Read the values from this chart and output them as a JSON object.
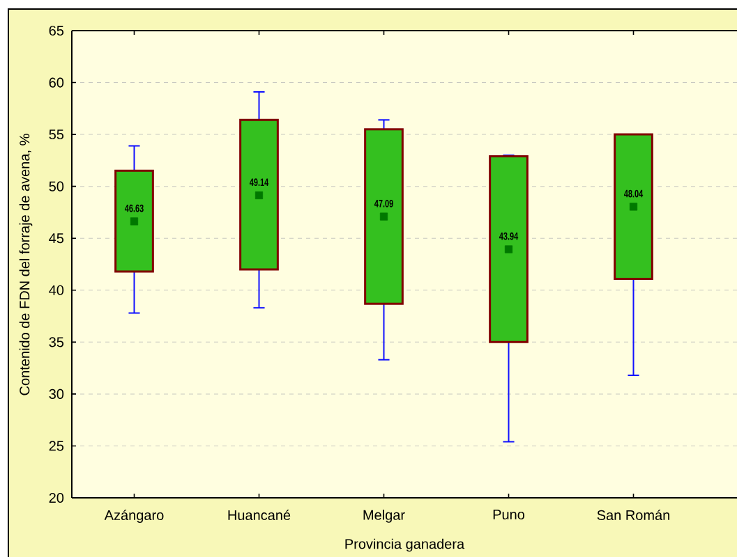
{
  "chart_data": {
    "type": "box",
    "xlabel": "Provincia ganadera",
    "ylabel": "Contenido de FDN del forraje de avena, %",
    "categories": [
      "Azángaro",
      "Huancané",
      "Melgar",
      "Puno",
      "San Román"
    ],
    "boxes": [
      {
        "low": 37.8,
        "q1": 41.8,
        "q3": 51.5,
        "high": 53.9
      },
      {
        "low": 38.3,
        "q1": 42.0,
        "q3": 56.4,
        "high": 59.1
      },
      {
        "low": 33.3,
        "q1": 38.7,
        "q3": 55.5,
        "high": 56.4
      },
      {
        "low": 25.4,
        "q1": 35.0,
        "q3": 52.9,
        "high": 53.0
      },
      {
        "low": 31.8,
        "q1": 41.1,
        "q3": 55.0,
        "high": 55.0
      }
    ],
    "series": [
      {
        "type": "scatter",
        "x": [
          "Azángaro",
          "Huancané",
          "Melgar",
          "Puno",
          "San Román"
        ],
        "values": [
          46.63,
          49.14,
          47.09,
          43.94,
          48.04
        ],
        "value_labels": [
          "46.63",
          "49.14",
          "47.09",
          "43.94",
          "48.04"
        ],
        "color": "#007800"
      }
    ],
    "color": "#34c01f",
    "ylim": [
      20,
      65
    ],
    "yticks": [
      20,
      25,
      30,
      35,
      40,
      45,
      50,
      55,
      60,
      65
    ],
    "grid": "y",
    "marker": "square"
  }
}
